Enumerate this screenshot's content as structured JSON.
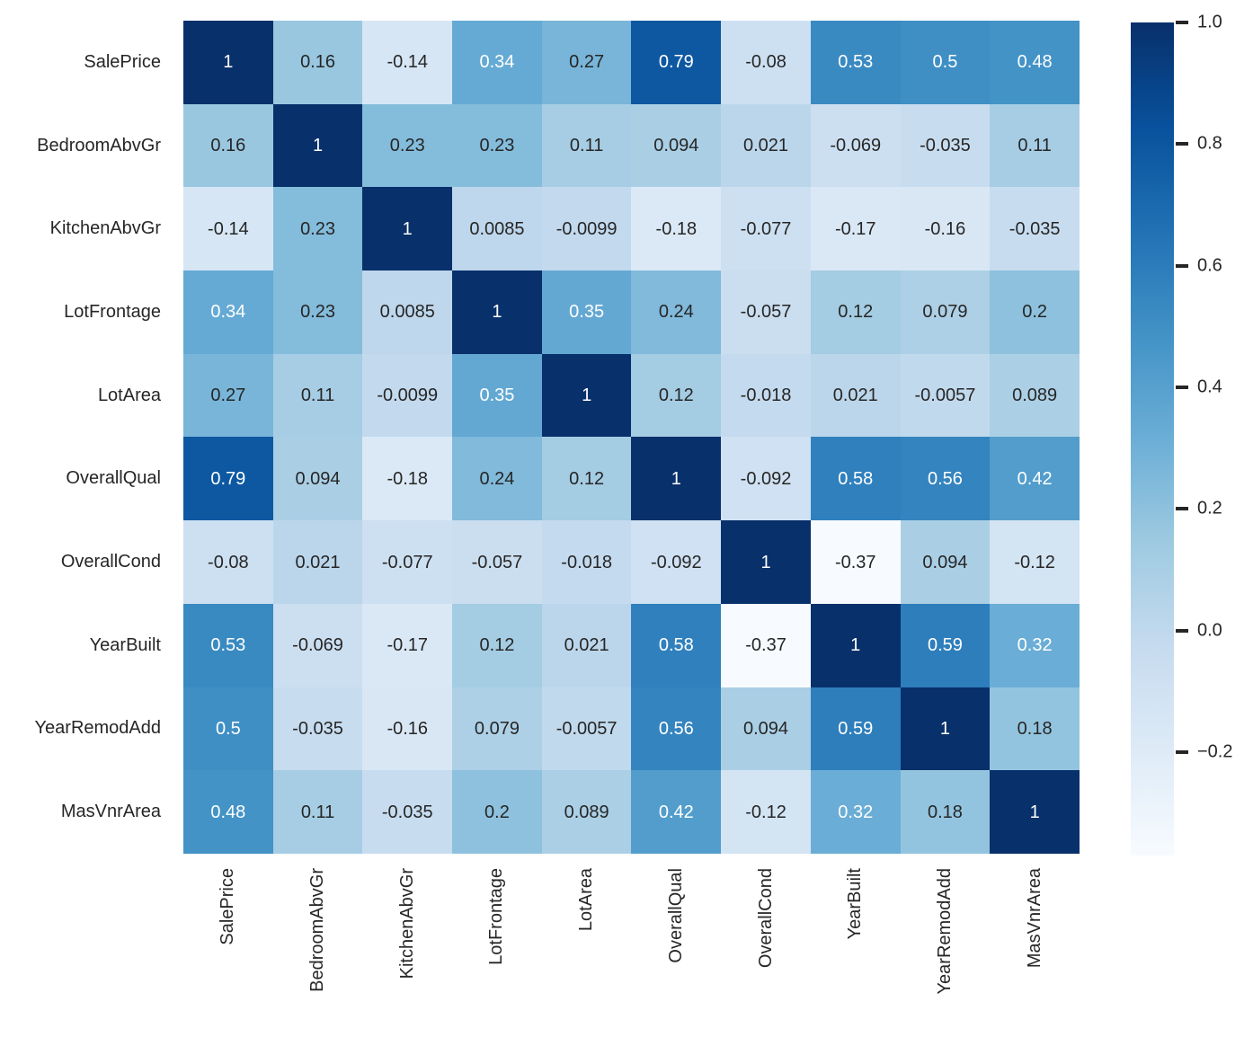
{
  "figure": {
    "background": "#ffffff",
    "axis_text_color": "#262626",
    "annot_dark_color": "#262626",
    "annot_light_color": "#ffffff"
  },
  "chart_data": {
    "type": "heatmap",
    "title": "",
    "xlabel": "",
    "ylabel": "",
    "variables": [
      "SalePrice",
      "BedroomAbvGr",
      "KitchenAbvGr",
      "LotFrontage",
      "LotArea",
      "OverallQual",
      "OverallCond",
      "YearBuilt",
      "YearRemodAdd",
      "MasVnrArea"
    ],
    "matrix": [
      [
        1,
        0.16,
        -0.14,
        0.34,
        0.27,
        0.79,
        -0.08,
        0.53,
        0.5,
        0.48
      ],
      [
        0.16,
        1,
        0.23,
        0.23,
        0.11,
        0.094,
        0.021,
        -0.069,
        -0.035,
        0.11
      ],
      [
        -0.14,
        0.23,
        1,
        0.0085,
        -0.0099,
        -0.18,
        -0.077,
        -0.17,
        -0.16,
        -0.035
      ],
      [
        0.34,
        0.23,
        0.0085,
        1,
        0.35,
        0.24,
        -0.057,
        0.12,
        0.079,
        0.2
      ],
      [
        0.27,
        0.11,
        -0.0099,
        0.35,
        1,
        0.12,
        -0.018,
        0.021,
        -0.0057,
        0.089
      ],
      [
        0.79,
        0.094,
        -0.18,
        0.24,
        0.12,
        1,
        -0.092,
        0.58,
        0.56,
        0.42
      ],
      [
        -0.08,
        0.021,
        -0.077,
        -0.057,
        -0.018,
        -0.092,
        1,
        -0.37,
        0.094,
        -0.12
      ],
      [
        0.53,
        -0.069,
        -0.17,
        0.12,
        0.021,
        0.58,
        -0.37,
        1,
        0.59,
        0.32
      ],
      [
        0.5,
        -0.035,
        -0.16,
        0.079,
        -0.0057,
        0.56,
        0.094,
        0.59,
        1,
        0.18
      ],
      [
        0.48,
        0.11,
        -0.035,
        0.2,
        0.089,
        0.42,
        -0.12,
        0.32,
        0.18,
        1
      ]
    ],
    "annotation_format": ".2g",
    "colormap": "Blues",
    "colormap_stops": [
      "#f7fbff",
      "#deebf7",
      "#c6dbef",
      "#9ecae1",
      "#6baed6",
      "#4292c6",
      "#2171b5",
      "#08519c",
      "#08306b"
    ],
    "vmin": -0.37,
    "vmax": 1.0,
    "x_tick_rotation": 90,
    "grid_lines": false,
    "colorbar": {
      "position": "right",
      "tick_values": [
        1.0,
        0.8,
        0.6,
        0.4,
        0.2,
        0.0,
        -0.2
      ],
      "tick_labels": [
        "1.0",
        "0.8",
        "0.6",
        "0.4",
        "0.2",
        "0.0",
        "−0.2"
      ]
    }
  }
}
